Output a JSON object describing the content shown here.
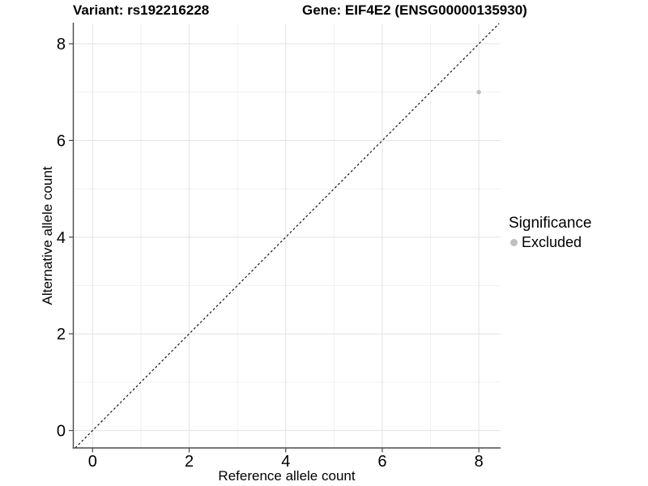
{
  "chart_data": {
    "type": "scatter",
    "title_left": "Variant: rs192216228",
    "title_right": "Gene: EIF4E2 (ENSG00000135930)",
    "xlabel": "Reference allele count",
    "ylabel": "Alternative allele count",
    "xticks": [
      0,
      2,
      4,
      6,
      8
    ],
    "yticks": [
      0,
      2,
      4,
      6,
      8
    ],
    "xminor": [
      1,
      3,
      5,
      7
    ],
    "yminor": [
      1,
      3,
      5,
      7
    ],
    "xlim": [
      -0.4,
      8.45
    ],
    "ylim": [
      -0.36,
      8.42
    ],
    "grid": true,
    "identity_line": {
      "style": "dashed",
      "slope": 1,
      "intercept": 0
    },
    "series": [
      {
        "name": "Excluded",
        "color": "#bfbfbf",
        "points": [
          {
            "x": 8,
            "y": 7
          }
        ]
      }
    ],
    "legend": {
      "title": "Significance",
      "position": "right",
      "items": [
        {
          "label": "Excluded",
          "color": "#bfbfbf"
        }
      ]
    }
  },
  "colors": {
    "background": "#ffffff",
    "text": "#000000",
    "axis_line": "#4a4a4a",
    "tick_mark": "#4a4a4a",
    "grid_major": "#e5e5e5",
    "grid_minor": "#efefef",
    "identity_line": "#000000"
  }
}
